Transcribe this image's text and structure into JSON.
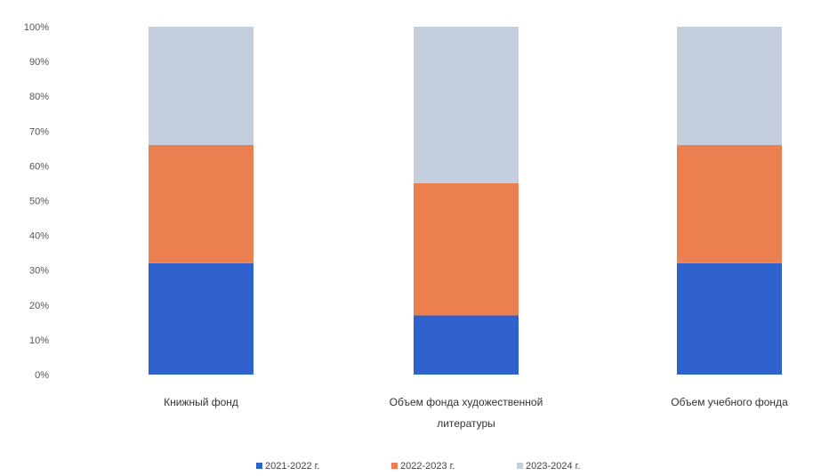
{
  "chart_data": {
    "type": "bar",
    "stacked": "percent",
    "title": "",
    "xlabel": "",
    "ylabel": "",
    "ylim": [
      0,
      100
    ],
    "y_ticks": [
      "0%",
      "10%",
      "20%",
      "30%",
      "40%",
      "50%",
      "60%",
      "70%",
      "80%",
      "90%",
      "100%"
    ],
    "categories": [
      [
        "Книжный фонд"
      ],
      [
        "Объем фонда художественной",
        "литературы"
      ],
      [
        "Объем учебного фонда"
      ]
    ],
    "series": [
      {
        "name": "2021-2022 г.",
        "color": "#2f62cc",
        "values": [
          32,
          17,
          32
        ]
      },
      {
        "name": "2022-2023 г.",
        "color": "#ec7f4f",
        "values": [
          34,
          38,
          34
        ]
      },
      {
        "name": "2023-2024 г.",
        "color": "#c5cedc",
        "values": [
          34,
          45,
          34
        ]
      }
    ],
    "grid": false,
    "legend_position": "bottom"
  }
}
